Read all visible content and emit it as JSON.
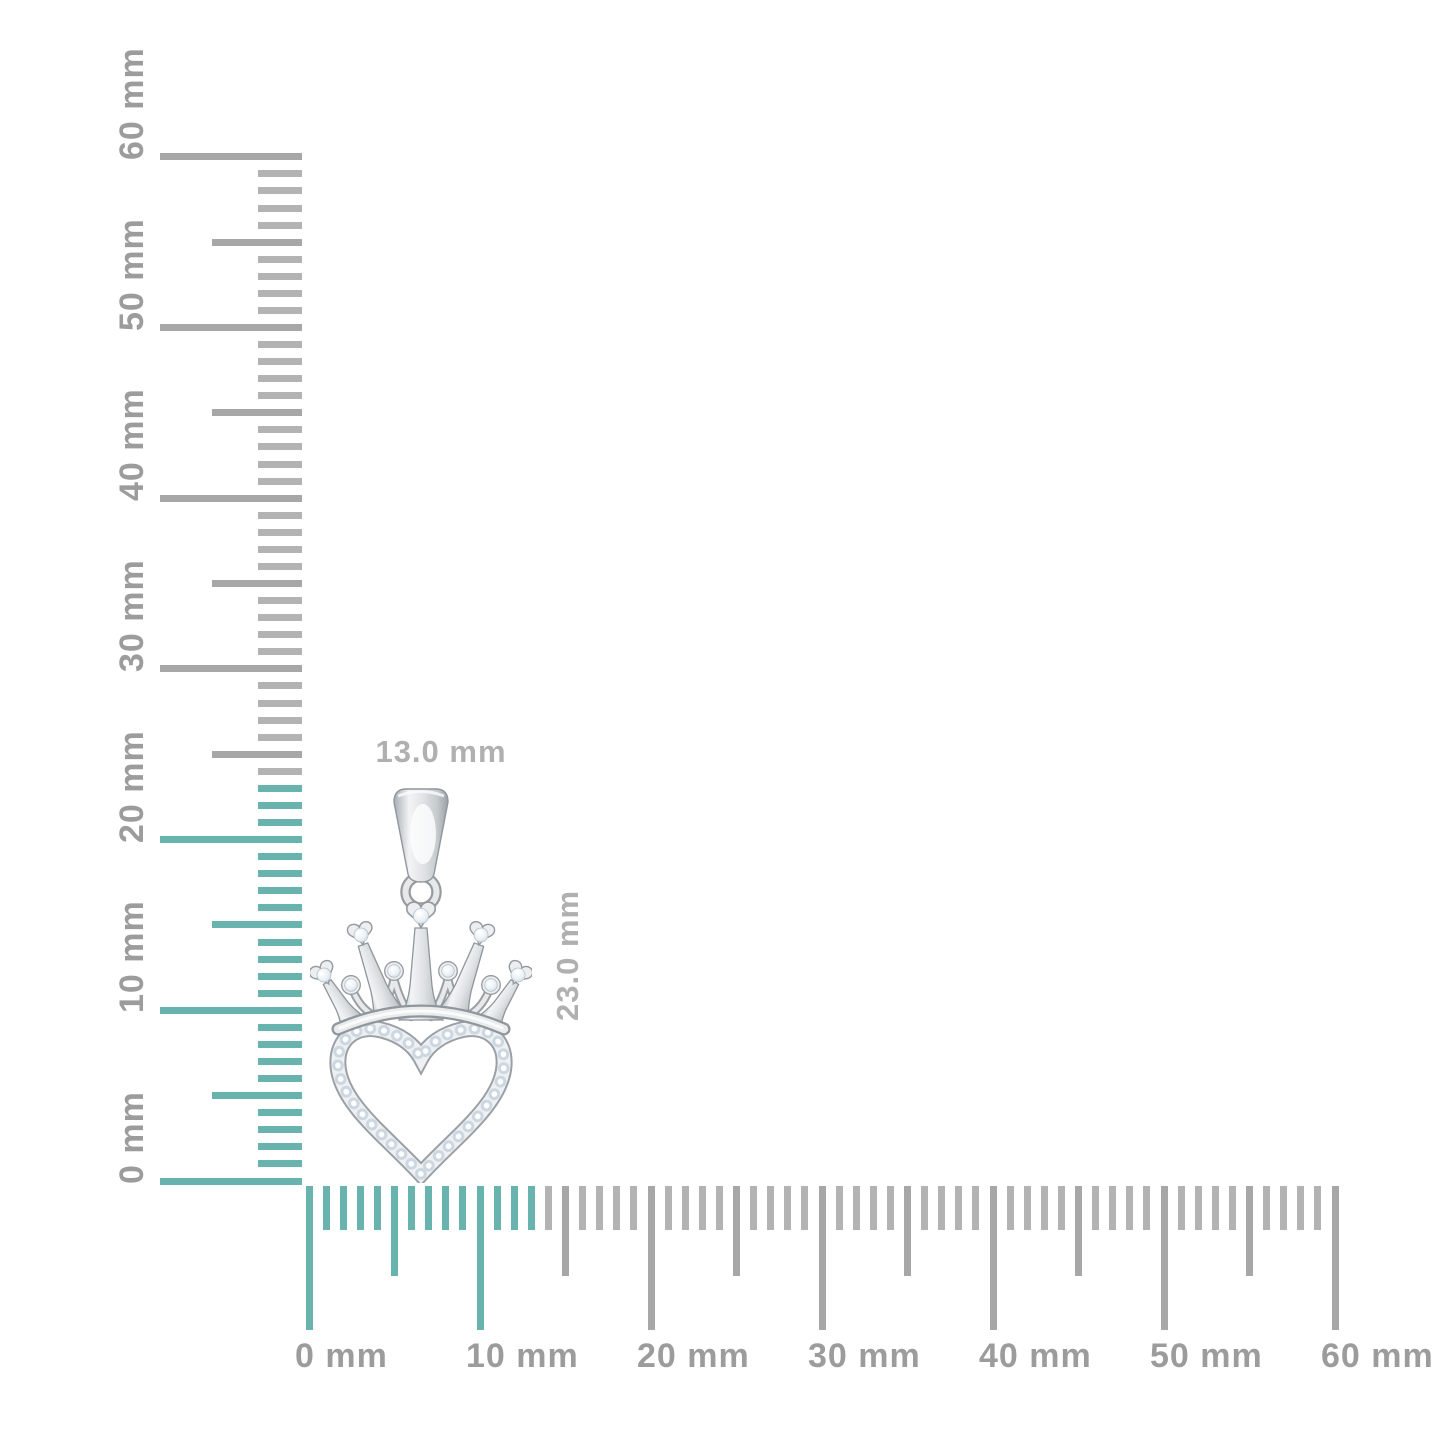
{
  "background": "#ffffff",
  "colors": {
    "tick_minor_gray": "#b3b3b3",
    "tick_major_gray": "#a7a7a7",
    "tick_highlight_teal": "#68b3ad",
    "ruler_label_gray": "#9c9c9c",
    "dimension_label_gray": "#b0b0b0",
    "metal_edge": "#949aa0",
    "metal_light": "#eff1f3",
    "diamond_pale": "#e3ebf3"
  },
  "rulers": {
    "unit": "mm",
    "vertical": {
      "min_mm": 0,
      "max_mm": 60,
      "label_step_mm": 10,
      "labels": [
        "0 mm",
        "10 mm",
        "20 mm",
        "30 mm",
        "40 mm",
        "50 mm",
        "60 mm"
      ],
      "highlight_from_mm": 0,
      "highlight_to_mm": 23
    },
    "horizontal": {
      "min_mm": 0,
      "max_mm": 60,
      "label_step_mm": 10,
      "labels": [
        "0 mm",
        "10 mm",
        "20 mm",
        "30 mm",
        "40 mm",
        "50 mm",
        "60 mm"
      ],
      "highlight_from_mm": 0,
      "highlight_to_mm": 13
    }
  },
  "pendant": {
    "width_label": "13.0 mm",
    "height_label": "23.0 mm",
    "width_mm": 13.0,
    "height_mm": 23.0
  }
}
